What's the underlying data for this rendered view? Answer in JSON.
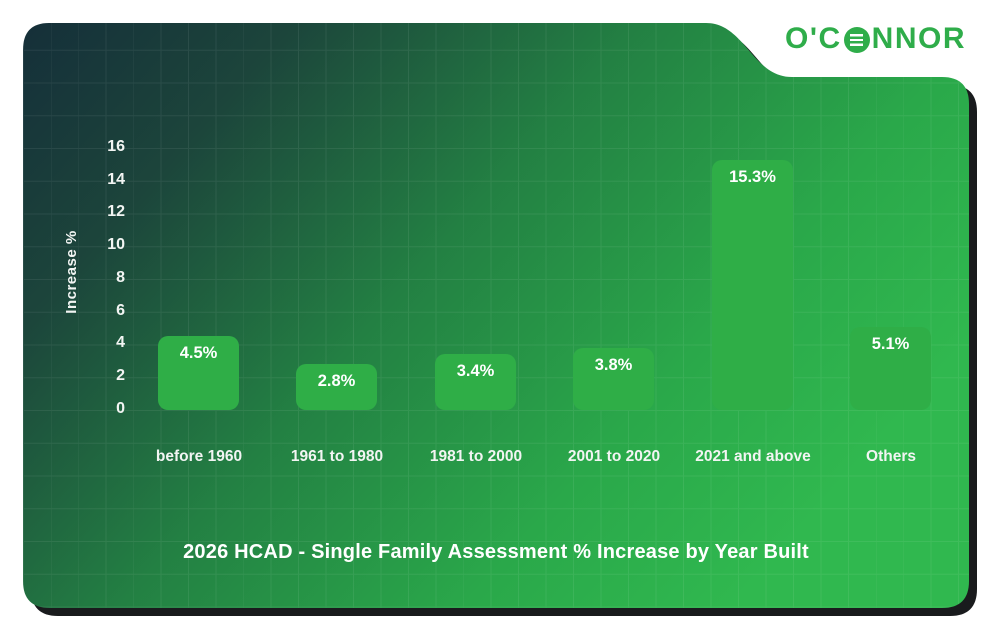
{
  "logo": {
    "pre": "O'C",
    "post": "NNOR",
    "o_icon": "striped-circle-o-icon",
    "color": "#2fad4a"
  },
  "chart_data": {
    "type": "bar",
    "title": "2026 HCAD - Single Family Assessment % Increase by Year Built",
    "xlabel": "",
    "ylabel": "Increase %",
    "categories": [
      "before 1960",
      "1961 to 1980",
      "1981 to 2000",
      "2001 to 2020",
      "2021 and above",
      "Others"
    ],
    "values": [
      4.5,
      2.8,
      3.4,
      3.8,
      15.3,
      5.1
    ],
    "bar_labels": [
      "4.5%",
      "2.8%",
      "3.4%",
      "3.8%",
      "15.3%",
      "5.1%"
    ],
    "ylim": [
      0,
      16
    ],
    "yticks": [
      "16",
      "14",
      "12",
      "10",
      "8",
      "6",
      "4",
      "2",
      "0"
    ],
    "grid": true,
    "legend": false,
    "bar_color": "#2fae47",
    "value_label_color": "#ffffff",
    "axis_text_color": "#f2f5f3",
    "background_gradient": [
      "#152f39",
      "#1c453b",
      "#238043",
      "#2aa84a",
      "#30b84f"
    ]
  }
}
